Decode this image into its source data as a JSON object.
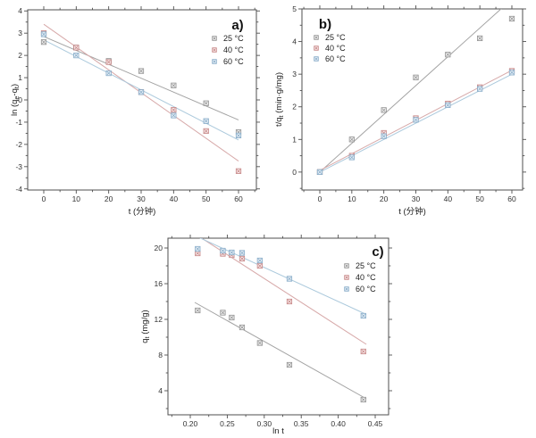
{
  "figure": {
    "background": "#ffffff",
    "description": "Three adsorption kinetics panels"
  },
  "palette": {
    "axis": "#4f4f4f",
    "tick_label": "#333333",
    "title_color": "#111111",
    "series_25": {
      "marker": "#8f8f8f",
      "fill": "#f4f4f4",
      "line": "#a3a3a3"
    },
    "series_40": {
      "marker": "#c48282",
      "fill": "#f9ecec",
      "line": "#d7a9a9"
    },
    "series_60": {
      "marker": "#82a8c6",
      "fill": "#ebf2f8",
      "line": "#abc9dc"
    }
  },
  "chart_data": [
    {
      "id": "a",
      "type": "scatter",
      "title": "a)",
      "xlabel": "t (分钟)",
      "ylabel": "ln (q[e]-q[t])",
      "xlim": [
        -4.95,
        65.5
      ],
      "ylim": [
        -4.05,
        4.05
      ],
      "xticks": {
        "start": 0,
        "end": 60,
        "step": 10,
        "minor_step": 5,
        "decimals": 0
      },
      "yticks": {
        "start": -4,
        "end": 4,
        "step": 1,
        "minor_step": 0.5,
        "decimals": 0
      },
      "legend_position": "top-right",
      "grid": false,
      "series": [
        {
          "name": "25 °C",
          "color_key": "series_25",
          "marker": "crossed-square",
          "x": [
            0,
            10,
            20,
            30,
            40,
            50,
            60
          ],
          "y": [
            2.6,
            2.35,
            1.75,
            1.3,
            0.65,
            -0.15,
            -1.45
          ],
          "fit_line": {
            "x": [
              0,
              60
            ],
            "y": [
              2.85,
              -0.9
            ]
          }
        },
        {
          "name": "40 °C",
          "color_key": "series_40",
          "marker": "crossed-square",
          "x": [
            0,
            10,
            20,
            30,
            40,
            50,
            60
          ],
          "y": [
            3.0,
            2.35,
            1.7,
            0.35,
            -0.45,
            -1.4,
            -3.2
          ],
          "fit_line": {
            "x": [
              0,
              60
            ],
            "y": [
              3.4,
              -2.75
            ]
          }
        },
        {
          "name": "60 °C",
          "color_key": "series_60",
          "marker": "crossed-square",
          "x": [
            0,
            10,
            20,
            30,
            40,
            50,
            60
          ],
          "y": [
            2.95,
            2.0,
            1.2,
            0.35,
            -0.7,
            -0.95,
            -1.6
          ],
          "fit_line": {
            "x": [
              0,
              60
            ],
            "y": [
              2.7,
              -1.8
            ]
          }
        }
      ]
    },
    {
      "id": "b",
      "type": "scatter",
      "title": "b)",
      "xlabel": "t (分钟)",
      "ylabel": "t/q[t] (min·g/mg)",
      "xlim": [
        -5.58,
        63.35
      ],
      "ylim": [
        -0.55,
        5.0
      ],
      "xticks": {
        "start": 0,
        "end": 60,
        "step": 10,
        "minor_step": 5,
        "decimals": 0
      },
      "yticks": {
        "start": 0,
        "end": 5,
        "step": 1,
        "minor_step": 0.5,
        "decimals": 0
      },
      "legend_position": "top-left",
      "grid": false,
      "series": [
        {
          "name": "25 °C",
          "color_key": "series_25",
          "marker": "crossed-square",
          "x": [
            0,
            10,
            20,
            30,
            40,
            50,
            60
          ],
          "y": [
            0.0,
            1.0,
            1.9,
            2.9,
            3.6,
            4.1,
            4.7
          ],
          "fit_line": {
            "x": [
              0,
              60
            ],
            "y": [
              0.0,
              5.3
            ]
          }
        },
        {
          "name": "40 °C",
          "color_key": "series_40",
          "marker": "crossed-square",
          "x": [
            0,
            10,
            20,
            30,
            40,
            50,
            60
          ],
          "y": [
            0.0,
            0.5,
            1.2,
            1.65,
            2.1,
            2.6,
            3.1
          ],
          "fit_line": {
            "x": [
              0,
              60
            ],
            "y": [
              0.05,
              3.12
            ]
          }
        },
        {
          "name": "60 °C",
          "color_key": "series_60",
          "marker": "crossed-square",
          "x": [
            0,
            10,
            20,
            30,
            40,
            50,
            60
          ],
          "y": [
            0.0,
            0.45,
            1.1,
            1.6,
            2.05,
            2.55,
            3.05
          ],
          "fit_line": {
            "x": [
              0,
              60
            ],
            "y": [
              0.0,
              3.0
            ]
          }
        }
      ]
    },
    {
      "id": "c",
      "type": "scatter",
      "title": "c)",
      "xlabel": "ln t",
      "ylabel": "q[t] (mg/g)",
      "xlim": [
        0.1698,
        0.4681
      ],
      "ylim": [
        1.3,
        21.1
      ],
      "xticks": {
        "start": 0.2,
        "end": 0.45,
        "step": 0.05,
        "minor_step": 0.025,
        "decimals": 2
      },
      "yticks": {
        "start": 4,
        "end": 20,
        "step": 4,
        "minor_step": 2,
        "decimals": 0
      },
      "legend_position": "top-right",
      "grid": false,
      "series": [
        {
          "name": "25 °C",
          "color_key": "series_25",
          "marker": "crossed-square",
          "x": [
            0.21,
            0.244,
            0.256,
            0.27,
            0.294,
            0.334,
            0.434
          ],
          "y": [
            13.0,
            12.75,
            12.2,
            11.1,
            9.35,
            6.9,
            3.0
          ],
          "fit_line": {
            "x": [
              0.206,
              0.438
            ],
            "y": [
              13.9,
              3.1
            ]
          }
        },
        {
          "name": "40 °C",
          "color_key": "series_40",
          "marker": "crossed-square",
          "x": [
            0.21,
            0.244,
            0.256,
            0.27,
            0.294,
            0.334,
            0.434
          ],
          "y": [
            19.4,
            19.35,
            19.2,
            18.8,
            18.0,
            14.0,
            8.4
          ],
          "fit_line": {
            "x": [
              0.206,
              0.438
            ],
            "y": [
              21.6,
              9.2
            ]
          }
        },
        {
          "name": "60 °C",
          "color_key": "series_60",
          "marker": "crossed-square",
          "x": [
            0.21,
            0.244,
            0.256,
            0.27,
            0.294,
            0.334,
            0.434
          ],
          "y": [
            19.9,
            19.7,
            19.5,
            19.45,
            18.6,
            16.55,
            12.4
          ],
          "fit_line": {
            "x": [
              0.206,
              0.438
            ],
            "y": [
              21.4,
              12.55
            ]
          }
        }
      ]
    }
  ]
}
